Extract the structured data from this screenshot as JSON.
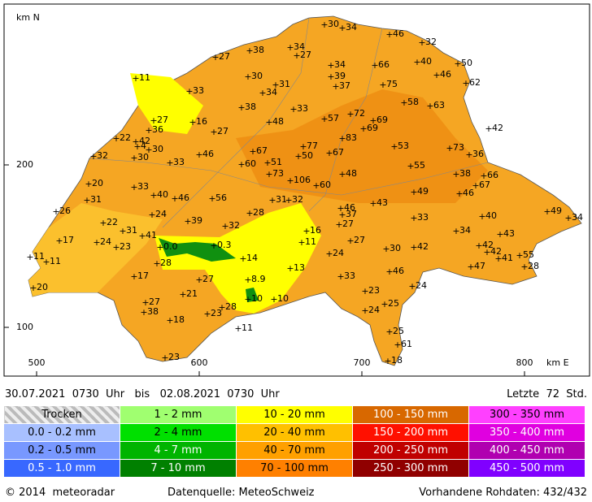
{
  "map": {
    "ylabel": "km N",
    "xlabel": "km E",
    "xlim": [
      480,
      840
    ],
    "ylim": [
      70,
      299
    ],
    "xticks": [
      500,
      600,
      700,
      800
    ],
    "yticks": [
      100,
      200
    ],
    "stations": {
      "x": [
        677,
        688,
        717,
        737,
        656,
        631,
        660,
        610,
        681,
        708,
        734,
        759,
        561,
        630,
        681,
        746,
        764,
        647,
        639,
        684,
        713,
        594,
        726,
        742,
        626,
        658,
        693,
        677,
        707,
        701,
        572,
        596,
        643,
        569,
        778,
        609,
        549,
        561,
        688,
        562,
        569,
        664,
        720,
        754,
        535,
        560,
        600,
        633,
        680,
        766,
        661,
        582,
        626,
        642,
        730,
        643,
        688,
        758,
        775,
        532,
        656,
        560,
        672,
        770,
        572,
        585,
        608,
        645,
        655,
        732,
        760,
        531,
        707,
        687,
        512,
        631,
        571,
        688,
        732,
        774,
        814,
        827,
        541,
        593,
        686,
        616,
        553,
        758,
        785,
        666,
        514,
        537,
        565,
        663,
        693,
        549,
        576,
        609,
        715,
        732,
        772,
        777,
        784,
        797,
        496,
        506,
        680,
        627,
        574,
        800,
        767,
        656,
        560,
        717,
        687,
        600,
        630,
        731,
        498,
        590,
        702,
        630,
        646,
        567,
        714,
        702,
        614,
        566,
        605,
        582,
        624,
        717,
        722,
        579,
        716
      ],
      "y": [
        286,
        284,
        280,
        275,
        272,
        270,
        267,
        266,
        261,
        261,
        263,
        262,
        253,
        254,
        254,
        255,
        250,
        249,
        244,
        248,
        249,
        245,
        238,
        236,
        235,
        234,
        231,
        228,
        227,
        222,
        227,
        226,
        226,
        221,
        222,
        220,
        216,
        214,
        216,
        211,
        209,
        211,
        211,
        210,
        205,
        204,
        206,
        208,
        207,
        206,
        205,
        201,
        200,
        201,
        199,
        194,
        194,
        194,
        193,
        188,
        190,
        186,
        187,
        187,
        181,
        179,
        179,
        178,
        178,
        183,
        182,
        178,
        176,
        173,
        171,
        170,
        169,
        169,
        167,
        168,
        171,
        167,
        164,
        165,
        163,
        162,
        159,
        159,
        157,
        159,
        153,
        152,
        156,
        152,
        153,
        149,
        149,
        150,
        148,
        149,
        150,
        146,
        142,
        144,
        143,
        140,
        145,
        142,
        139,
        137,
        137,
        136,
        131,
        134,
        131,
        129,
        129,
        125,
        124,
        120,
        122,
        117,
        117,
        115,
        114,
        110,
        112,
        109,
        108,
        104,
        99,
        97,
        89,
        81,
        79
      ],
      "values": [
        30,
        34,
        46,
        32,
        34,
        38,
        27,
        27,
        34,
        66,
        40,
        50,
        11,
        30,
        39,
        46,
        62,
        31,
        34,
        37,
        75,
        33,
        58,
        63,
        38,
        33,
        72,
        57,
        69,
        69,
        27,
        16,
        48,
        36,
        42,
        27,
        22,
        42,
        83,
        4,
        30,
        77,
        53,
        73,
        32,
        30,
        46,
        67,
        67,
        36,
        50,
        33,
        60,
        51,
        55,
        73,
        48,
        38,
        66,
        20,
        106,
        33,
        60,
        67,
        40,
        46,
        56,
        31,
        32,
        49,
        46,
        31,
        43,
        46,
        26,
        28,
        24,
        37,
        33,
        40,
        49,
        34,
        22,
        39,
        27,
        32,
        31,
        34,
        43,
        16,
        17,
        24,
        41,
        11,
        27,
        23,
        0,
        0.3,
        30,
        42,
        42,
        42,
        41,
        55,
        11,
        11,
        24,
        14,
        28,
        28,
        47,
        13,
        17,
        46,
        33,
        27,
        8.9,
        24,
        20,
        21,
        23,
        10,
        10,
        27,
        25,
        24,
        28,
        38,
        23,
        18,
        11,
        25,
        61,
        23,
        18
      ],
      "value_labels": [
        "30",
        "34",
        "46",
        "32",
        "34",
        "38",
        "27",
        "27",
        "34",
        "66",
        "40",
        "50",
        "11",
        "30",
        "39",
        "46",
        "62",
        "31",
        "34",
        "37",
        "75",
        "33",
        "58",
        "63",
        "38",
        "33",
        "72",
        "57",
        "69",
        "69",
        "27",
        "16",
        "48",
        "36",
        "42",
        "27",
        "22",
        "42",
        "83",
        "4",
        "30",
        "77",
        "53",
        "73",
        "32",
        "30",
        "46",
        "67",
        "67",
        "36",
        "50",
        "33",
        "60",
        "51",
        "55",
        "73",
        "48",
        "38",
        "66",
        "20",
        "106",
        "33",
        "60",
        "67",
        "40",
        "46",
        "56",
        "31",
        "32",
        "49",
        "46",
        "31",
        "43",
        "46",
        "26",
        "28",
        "24",
        "37",
        "33",
        "40",
        "49",
        "34",
        "22",
        "39",
        "27",
        "32",
        "31",
        "34",
        "43",
        "16",
        "17",
        "24",
        "41",
        "11",
        "27",
        "23",
        "0.0",
        "0.3",
        "30",
        "42",
        "42",
        "42",
        "41",
        "55",
        "11",
        "11",
        "24",
        "14",
        "28",
        "28",
        "47",
        "13",
        "17",
        "46",
        "33",
        "27",
        "8.9",
        "24",
        "20",
        "21",
        "23",
        "10",
        "10",
        "27",
        "25",
        "24",
        "28",
        "38",
        "23",
        "18",
        "11",
        "25",
        "61",
        "23",
        "18"
      ]
    }
  },
  "header": {
    "period": "30.07.2021  0730  Uhr   bis   02.08.2021  0730  Uhr",
    "window": "Letzte  72  Std."
  },
  "legend": {
    "rows": [
      [
        "Trocken",
        "1 - 2 mm",
        "10 - 20 mm",
        "100 - 150 mm",
        "300 - 350 mm"
      ],
      [
        "0.0 - 0.2 mm",
        "2 - 4 mm",
        "20 - 40 mm",
        "150 - 200 mm",
        "350 - 400 mm"
      ],
      [
        "0.2 - 0.5 mm",
        "4 - 7 mm",
        "40 - 70 mm",
        "200 - 250 mm",
        "400 - 450 mm"
      ],
      [
        "0.5 - 1.0 mm",
        "7 - 10 mm",
        "70 - 100 mm",
        "250 - 300 mm",
        "450 - 500 mm"
      ]
    ]
  },
  "footer": {
    "copyright": "© 2014  meteoradar",
    "source": "Datenquelle: MeteoSchweiz",
    "raw": "Vorhandene Rohdaten: 432/432"
  }
}
